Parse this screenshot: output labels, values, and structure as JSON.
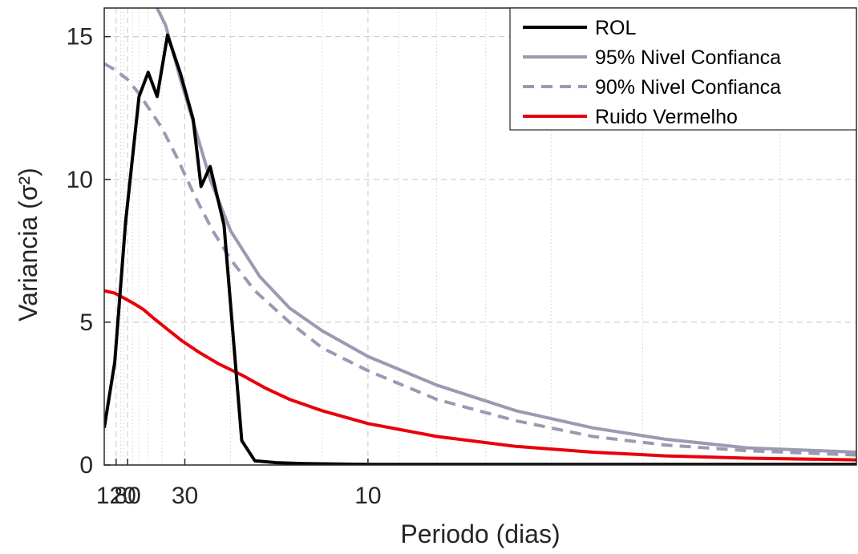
{
  "chart_data": {
    "type": "line",
    "xlabel": "Periodo (dias)",
    "ylabel": "Variancia (σ²)",
    "x_scale": "reciprocal",
    "xlim": [
      250,
      3.6
    ],
    "ylim": [
      0,
      16
    ],
    "yticks": [
      0,
      5,
      10,
      15
    ],
    "xticks": [
      {
        "label": "120",
        "value": 120
      },
      {
        "label": "80",
        "value": 80
      },
      {
        "label": "30",
        "value": 30
      },
      {
        "label": "10",
        "value": 10
      }
    ],
    "grid": true,
    "legend_position": "top-right",
    "series": [
      {
        "name": "ROL",
        "color": "#000000",
        "dash": "solid",
        "x": [
          250,
          128,
          85,
          60,
          50,
          43,
          37,
          31.5,
          27.5,
          25.5,
          23.5,
          21,
          18.5,
          17,
          15,
          13,
          10,
          3.6
        ],
        "y": [
          1.3,
          3.6,
          8.5,
          12.9,
          13.75,
          12.9,
          15.05,
          13.7,
          12.1,
          9.75,
          10.45,
          8.4,
          0.85,
          0.15,
          0.08,
          0.05,
          0.02,
          0.02
        ]
      },
      {
        "name": "95% Nivel Confianca",
        "color": "#9a9ab2",
        "dash": "solid",
        "x": [
          45,
          38,
          31.5,
          27,
          23.5,
          20,
          16.5,
          14,
          12,
          10,
          8,
          6.5,
          5.5,
          4.8,
          4.2,
          3.6
        ],
        "y": [
          16.2,
          15.4,
          13.5,
          11.8,
          10.0,
          8.2,
          6.6,
          5.5,
          4.7,
          3.8,
          2.8,
          1.9,
          1.3,
          0.9,
          0.6,
          0.45
        ]
      },
      {
        "name": "90% Nivel Confianca",
        "color": "#9a9ab2",
        "dash": "dashed",
        "x": [
          250,
          130,
          80,
          60,
          48,
          40,
          33,
          27,
          23,
          20,
          17,
          14,
          12,
          10,
          8,
          6.5,
          5.5,
          4.8,
          4.2,
          3.6
        ],
        "y": [
          14.05,
          13.85,
          13.5,
          13.0,
          12.4,
          11.8,
          10.8,
          9.4,
          8.2,
          7.2,
          6.1,
          5.0,
          4.1,
          3.3,
          2.3,
          1.55,
          1.0,
          0.7,
          0.5,
          0.35
        ]
      },
      {
        "name": "Ruido Vermelho",
        "color": "#e8000b",
        "dash": "solid",
        "x": [
          250,
          130,
          90,
          70,
          55,
          45,
          37,
          31,
          26,
          22,
          18.5,
          16,
          14,
          12,
          10,
          8,
          6.5,
          5.5,
          4.8,
          4.2,
          3.6
        ],
        "y": [
          6.1,
          6.02,
          5.85,
          5.68,
          5.45,
          5.12,
          4.75,
          4.35,
          3.95,
          3.55,
          3.15,
          2.7,
          2.3,
          1.9,
          1.45,
          1.0,
          0.65,
          0.45,
          0.32,
          0.24,
          0.18
        ]
      }
    ]
  }
}
